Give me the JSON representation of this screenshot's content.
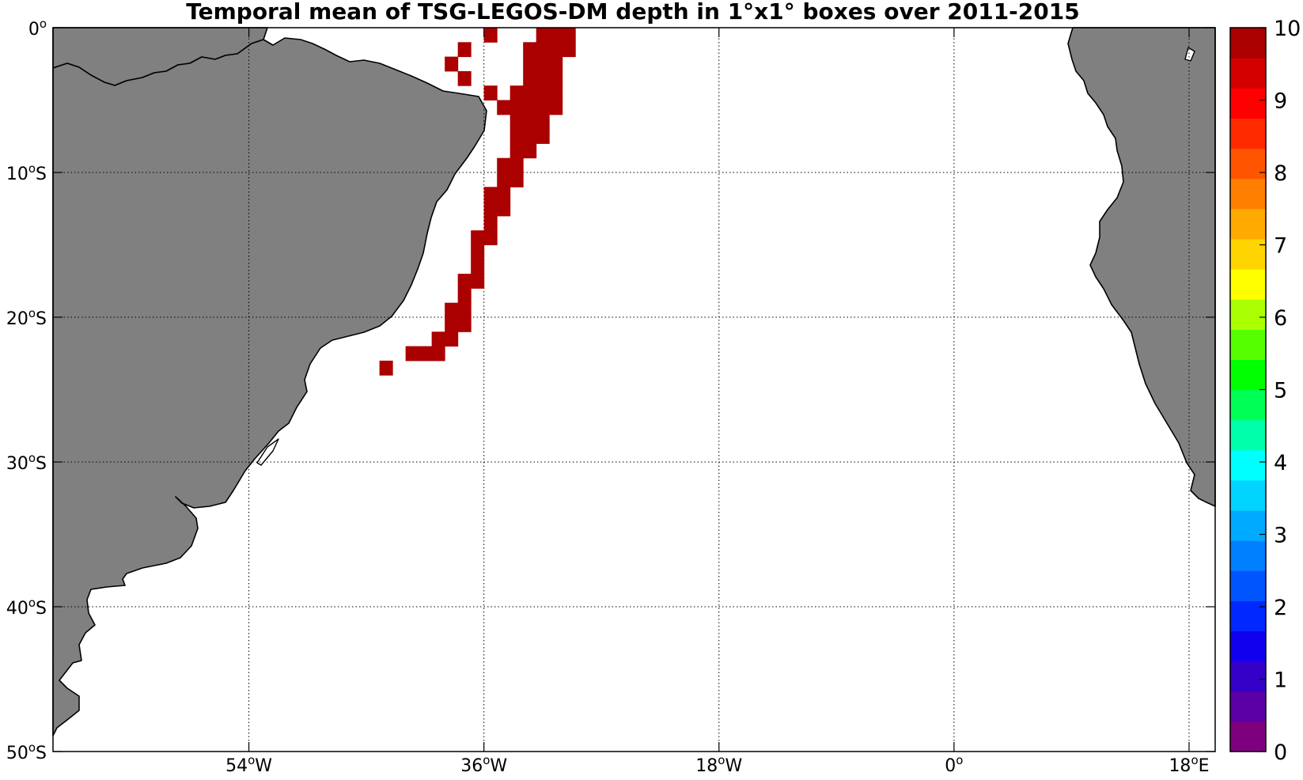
{
  "title": "Temporal mean of TSG-LEGOS-DM depth in 1°x1° boxes over 2011-2015",
  "map": {
    "lat_range": [
      -50,
      0
    ],
    "lon_range": [
      -69,
      20
    ],
    "lat_ticks": [
      {
        "value": 0,
        "num": "0",
        "sup": "o",
        "hem": ""
      },
      {
        "value": -10,
        "num": "10",
        "sup": "o",
        "hem": "S"
      },
      {
        "value": -20,
        "num": "20",
        "sup": "o",
        "hem": "S"
      },
      {
        "value": -30,
        "num": "30",
        "sup": "o",
        "hem": "S"
      },
      {
        "value": -40,
        "num": "40",
        "sup": "o",
        "hem": "S"
      },
      {
        "value": -50,
        "num": "50",
        "sup": "o",
        "hem": "S"
      }
    ],
    "lon_ticks": [
      {
        "value": -54,
        "num": "54",
        "sup": "o",
        "hem": "W"
      },
      {
        "value": -36,
        "num": "36",
        "sup": "o",
        "hem": "W"
      },
      {
        "value": -18,
        "num": "18",
        "sup": "o",
        "hem": "W"
      },
      {
        "value": 0,
        "num": "0",
        "sup": "o",
        "hem": ""
      },
      {
        "value": 18,
        "num": "18",
        "sup": "o",
        "hem": "E"
      }
    ],
    "grid": "dotted",
    "land_color": "#808080",
    "ocean_color": "#ffffff",
    "colorbar": {
      "min": 0,
      "max": 10,
      "ticks": [
        "0",
        "1",
        "2",
        "3",
        "4",
        "5",
        "6",
        "7",
        "8",
        "9",
        "10"
      ],
      "colors": [
        "#7f007f",
        "#5a00a5",
        "#3500c8",
        "#1000ee",
        "#0028ff",
        "#0055ff",
        "#007fff",
        "#00aaff",
        "#00d4ff",
        "#00ffff",
        "#00ffaa",
        "#00ff55",
        "#00ff00",
        "#55ff00",
        "#aaff00",
        "#ffff00",
        "#ffd400",
        "#ffaa00",
        "#ff7f00",
        "#ff5500",
        "#ff2a00",
        "#ff0000",
        "#d40000",
        "#aa0000"
      ]
    }
  },
  "chart_data": {
    "type": "heatmap",
    "title": "Temporal mean of TSG-LEGOS-DM depth in 1°x1° boxes over 2011-2015",
    "value_units": "",
    "cell_size_deg": 1,
    "cells": [
      {
        "lon": -36,
        "lat": -1,
        "value": 10
      },
      {
        "lon": -38,
        "lat": -2,
        "value": 10
      },
      {
        "lon": -39,
        "lat": -3,
        "value": 10
      },
      {
        "lon": -38,
        "lat": -4,
        "value": 10
      },
      {
        "lon": -32,
        "lat": -1,
        "value": 10
      },
      {
        "lon": -31,
        "lat": -1,
        "value": 10
      },
      {
        "lon": -30,
        "lat": -1,
        "value": 10
      },
      {
        "lon": -33,
        "lat": -2,
        "value": 10
      },
      {
        "lon": -32,
        "lat": -2,
        "value": 10
      },
      {
        "lon": -31,
        "lat": -2,
        "value": 10
      },
      {
        "lon": -30,
        "lat": -2,
        "value": 10
      },
      {
        "lon": -33,
        "lat": -3,
        "value": 10
      },
      {
        "lon": -32,
        "lat": -3,
        "value": 10
      },
      {
        "lon": -31,
        "lat": -3,
        "value": 10
      },
      {
        "lon": -33,
        "lat": -4,
        "value": 10
      },
      {
        "lon": -32,
        "lat": -4,
        "value": 10
      },
      {
        "lon": -31,
        "lat": -4,
        "value": 10
      },
      {
        "lon": -36,
        "lat": -5,
        "value": 10
      },
      {
        "lon": -34,
        "lat": -5,
        "value": 10
      },
      {
        "lon": -33,
        "lat": -5,
        "value": 10
      },
      {
        "lon": -32,
        "lat": -5,
        "value": 10
      },
      {
        "lon": -31,
        "lat": -5,
        "value": 10
      },
      {
        "lon": -35,
        "lat": -6,
        "value": 10
      },
      {
        "lon": -34,
        "lat": -6,
        "value": 10
      },
      {
        "lon": -33,
        "lat": -6,
        "value": 10
      },
      {
        "lon": -32,
        "lat": -6,
        "value": 10
      },
      {
        "lon": -31,
        "lat": -6,
        "value": 10
      },
      {
        "lon": -34,
        "lat": -7,
        "value": 10
      },
      {
        "lon": -33,
        "lat": -7,
        "value": 10
      },
      {
        "lon": -32,
        "lat": -7,
        "value": 10
      },
      {
        "lon": -34,
        "lat": -8,
        "value": 10
      },
      {
        "lon": -33,
        "lat": -8,
        "value": 10
      },
      {
        "lon": -32,
        "lat": -8,
        "value": 10
      },
      {
        "lon": -34,
        "lat": -9,
        "value": 10
      },
      {
        "lon": -33,
        "lat": -9,
        "value": 10
      },
      {
        "lon": -35,
        "lat": -10,
        "value": 10
      },
      {
        "lon": -34,
        "lat": -10,
        "value": 10
      },
      {
        "lon": -35,
        "lat": -11,
        "value": 10
      },
      {
        "lon": -34,
        "lat": -11,
        "value": 10
      },
      {
        "lon": -36,
        "lat": -12,
        "value": 10
      },
      {
        "lon": -35,
        "lat": -12,
        "value": 10
      },
      {
        "lon": -36,
        "lat": -13,
        "value": 10
      },
      {
        "lon": -35,
        "lat": -13,
        "value": 10
      },
      {
        "lon": -36,
        "lat": -14,
        "value": 10
      },
      {
        "lon": -37,
        "lat": -15,
        "value": 10
      },
      {
        "lon": -36,
        "lat": -15,
        "value": 10
      },
      {
        "lon": -37,
        "lat": -16,
        "value": 10
      },
      {
        "lon": -37,
        "lat": -17,
        "value": 10
      },
      {
        "lon": -38,
        "lat": -18,
        "value": 10
      },
      {
        "lon": -37,
        "lat": -18,
        "value": 10
      },
      {
        "lon": -38,
        "lat": -19,
        "value": 10
      },
      {
        "lon": -39,
        "lat": -20,
        "value": 10
      },
      {
        "lon": -38,
        "lat": -20,
        "value": 10
      },
      {
        "lon": -39,
        "lat": -21,
        "value": 10
      },
      {
        "lon": -38,
        "lat": -21,
        "value": 10
      },
      {
        "lon": -40,
        "lat": -22,
        "value": 10
      },
      {
        "lon": -39,
        "lat": -22,
        "value": 10
      },
      {
        "lon": -41,
        "lat": -23,
        "value": 10
      },
      {
        "lon": -40,
        "lat": -23,
        "value": 10
      },
      {
        "lon": -42,
        "lat": -23,
        "value": 10
      },
      {
        "lon": -44,
        "lat": -24,
        "value": 10
      }
    ]
  }
}
